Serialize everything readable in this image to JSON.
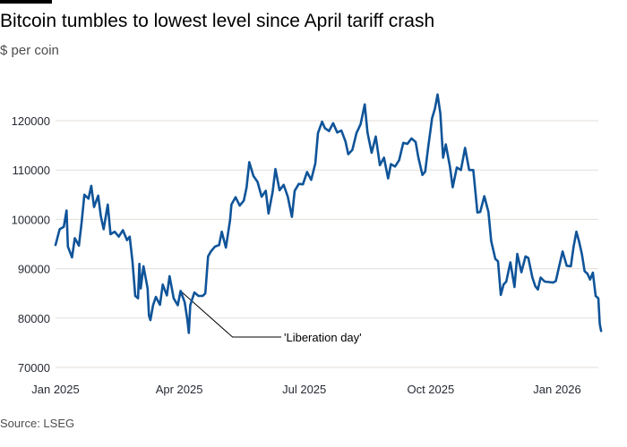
{
  "chart_data": {
    "type": "line",
    "title": "Bitcoin tumbles to lowest level since April tariff crash",
    "ylabel": "$ per coin",
    "source": "Source: LSEG",
    "ylim": [
      70000,
      128000
    ],
    "y_ticks": [
      70000,
      80000,
      90000,
      100000,
      110000,
      120000
    ],
    "x_ticks": [
      {
        "date": "2025-01-01",
        "label": "Jan 2025"
      },
      {
        "date": "2025-04-01",
        "label": "Apr 2025"
      },
      {
        "date": "2025-07-01",
        "label": "Jul 2025"
      },
      {
        "date": "2025-10-01",
        "label": "Oct 2025"
      },
      {
        "date": "2026-01-01",
        "label": "Jan 2026"
      }
    ],
    "grid": "horizontal",
    "line_color": "#0f5499",
    "annotation": {
      "label": "'Liberation day'",
      "date": "2025-04-02",
      "value": 85500
    },
    "series": [
      {
        "points": [
          [
            "2025-01-01",
            94800
          ],
          [
            "2025-01-04",
            98000
          ],
          [
            "2025-01-07",
            98500
          ],
          [
            "2025-01-09",
            101800
          ],
          [
            "2025-01-10",
            94500
          ],
          [
            "2025-01-13",
            92300
          ],
          [
            "2025-01-15",
            96200
          ],
          [
            "2025-01-18",
            94700
          ],
          [
            "2025-01-20",
            99500
          ],
          [
            "2025-01-22",
            105000
          ],
          [
            "2025-01-25",
            104200
          ],
          [
            "2025-01-27",
            106800
          ],
          [
            "2025-01-29",
            102500
          ],
          [
            "2025-02-01",
            104800
          ],
          [
            "2025-02-03",
            100600
          ],
          [
            "2025-02-05",
            98000
          ],
          [
            "2025-02-08",
            103000
          ],
          [
            "2025-02-10",
            97000
          ],
          [
            "2025-02-13",
            97500
          ],
          [
            "2025-02-16",
            96500
          ],
          [
            "2025-02-19",
            97800
          ],
          [
            "2025-02-22",
            95800
          ],
          [
            "2025-02-24",
            96500
          ],
          [
            "2025-02-26",
            91500
          ],
          [
            "2025-02-28",
            84500
          ],
          [
            "2025-03-02",
            84000
          ],
          [
            "2025-03-03",
            91000
          ],
          [
            "2025-03-04",
            86000
          ],
          [
            "2025-03-06",
            90500
          ],
          [
            "2025-03-09",
            86000
          ],
          [
            "2025-03-10",
            80500
          ],
          [
            "2025-03-11",
            79600
          ],
          [
            "2025-03-13",
            82600
          ],
          [
            "2025-03-15",
            84300
          ],
          [
            "2025-03-18",
            82700
          ],
          [
            "2025-03-20",
            86800
          ],
          [
            "2025-03-23",
            84600
          ],
          [
            "2025-03-25",
            88500
          ],
          [
            "2025-03-28",
            84000
          ],
          [
            "2025-03-31",
            82600
          ],
          [
            "2025-04-02",
            85500
          ],
          [
            "2025-04-05",
            83200
          ],
          [
            "2025-04-07",
            79500
          ],
          [
            "2025-04-08",
            77000
          ],
          [
            "2025-04-09",
            82600
          ],
          [
            "2025-04-12",
            85200
          ],
          [
            "2025-04-15",
            84500
          ],
          [
            "2025-04-18",
            84500
          ],
          [
            "2025-04-20",
            85000
          ],
          [
            "2025-04-22",
            92500
          ],
          [
            "2025-04-24",
            93500
          ],
          [
            "2025-04-27",
            94500
          ],
          [
            "2025-04-30",
            94800
          ],
          [
            "2025-05-02",
            97500
          ],
          [
            "2025-05-05",
            94300
          ],
          [
            "2025-05-08",
            99800
          ],
          [
            "2025-05-09",
            103000
          ],
          [
            "2025-05-12",
            104500
          ],
          [
            "2025-05-15",
            102800
          ],
          [
            "2025-05-18",
            103800
          ],
          [
            "2025-05-20",
            106500
          ],
          [
            "2025-05-22",
            111600
          ],
          [
            "2025-05-25",
            108800
          ],
          [
            "2025-05-28",
            107600
          ],
          [
            "2025-05-31",
            104600
          ],
          [
            "2025-06-03",
            105800
          ],
          [
            "2025-06-05",
            101200
          ],
          [
            "2025-06-08",
            105600
          ],
          [
            "2025-06-10",
            110200
          ],
          [
            "2025-06-13",
            105900
          ],
          [
            "2025-06-16",
            107000
          ],
          [
            "2025-06-19",
            104600
          ],
          [
            "2025-06-22",
            100500
          ],
          [
            "2025-06-24",
            105800
          ],
          [
            "2025-06-27",
            107200
          ],
          [
            "2025-06-30",
            107100
          ],
          [
            "2025-07-03",
            109600
          ],
          [
            "2025-07-06",
            108000
          ],
          [
            "2025-07-09",
            111300
          ],
          [
            "2025-07-11",
            117500
          ],
          [
            "2025-07-14",
            119800
          ],
          [
            "2025-07-16",
            118500
          ],
          [
            "2025-07-19",
            117900
          ],
          [
            "2025-07-22",
            119500
          ],
          [
            "2025-07-25",
            117600
          ],
          [
            "2025-07-28",
            118000
          ],
          [
            "2025-07-31",
            115800
          ],
          [
            "2025-08-02",
            113200
          ],
          [
            "2025-08-05",
            114100
          ],
          [
            "2025-08-08",
            117500
          ],
          [
            "2025-08-11",
            119300
          ],
          [
            "2025-08-14",
            123300
          ],
          [
            "2025-08-16",
            117600
          ],
          [
            "2025-08-19",
            113500
          ],
          [
            "2025-08-22",
            116800
          ],
          [
            "2025-08-25",
            111000
          ],
          [
            "2025-08-28",
            112500
          ],
          [
            "2025-08-31",
            108300
          ],
          [
            "2025-09-02",
            111200
          ],
          [
            "2025-09-05",
            110700
          ],
          [
            "2025-09-08",
            112000
          ],
          [
            "2025-09-11",
            115500
          ],
          [
            "2025-09-14",
            115300
          ],
          [
            "2025-09-17",
            116400
          ],
          [
            "2025-09-20",
            115700
          ],
          [
            "2025-09-22",
            112600
          ],
          [
            "2025-09-25",
            109000
          ],
          [
            "2025-09-27",
            109700
          ],
          [
            "2025-09-29",
            114300
          ],
          [
            "2025-10-02",
            120500
          ],
          [
            "2025-10-04",
            122400
          ],
          [
            "2025-10-06",
            125300
          ],
          [
            "2025-10-08",
            121500
          ],
          [
            "2025-10-10",
            112500
          ],
          [
            "2025-10-12",
            115200
          ],
          [
            "2025-10-15",
            110700
          ],
          [
            "2025-10-17",
            106500
          ],
          [
            "2025-10-20",
            110500
          ],
          [
            "2025-10-23",
            110000
          ],
          [
            "2025-10-26",
            114500
          ],
          [
            "2025-10-29",
            110000
          ],
          [
            "2025-11-01",
            110000
          ],
          [
            "2025-11-04",
            101400
          ],
          [
            "2025-11-06",
            101500
          ],
          [
            "2025-11-09",
            104700
          ],
          [
            "2025-11-12",
            101500
          ],
          [
            "2025-11-14",
            95600
          ],
          [
            "2025-11-17",
            92000
          ],
          [
            "2025-11-19",
            91500
          ],
          [
            "2025-11-21",
            84700
          ],
          [
            "2025-11-23",
            86800
          ],
          [
            "2025-11-25",
            87400
          ],
          [
            "2025-11-28",
            91300
          ],
          [
            "2025-12-01",
            86300
          ],
          [
            "2025-12-03",
            93000
          ],
          [
            "2025-12-06",
            89300
          ],
          [
            "2025-12-09",
            92500
          ],
          [
            "2025-12-11",
            92200
          ],
          [
            "2025-12-14",
            88200
          ],
          [
            "2025-12-16",
            86500
          ],
          [
            "2025-12-18",
            85800
          ],
          [
            "2025-12-20",
            88200
          ],
          [
            "2025-12-23",
            87400
          ],
          [
            "2025-12-26",
            87300
          ],
          [
            "2025-12-29",
            87200
          ],
          [
            "2025-12-31",
            87500
          ],
          [
            "2026-01-02",
            89900
          ],
          [
            "2026-01-05",
            93500
          ],
          [
            "2026-01-08",
            90600
          ],
          [
            "2026-01-11",
            90500
          ],
          [
            "2026-01-13",
            94500
          ],
          [
            "2026-01-15",
            97500
          ],
          [
            "2026-01-17",
            95500
          ],
          [
            "2026-01-19",
            93000
          ],
          [
            "2026-01-21",
            89500
          ],
          [
            "2026-01-23",
            89000
          ],
          [
            "2026-01-25",
            87800
          ],
          [
            "2026-01-27",
            89200
          ],
          [
            "2026-01-29",
            84500
          ],
          [
            "2026-01-31",
            84000
          ],
          [
            "2026-02-01",
            78800
          ],
          [
            "2026-02-02",
            77400
          ]
        ]
      }
    ]
  }
}
